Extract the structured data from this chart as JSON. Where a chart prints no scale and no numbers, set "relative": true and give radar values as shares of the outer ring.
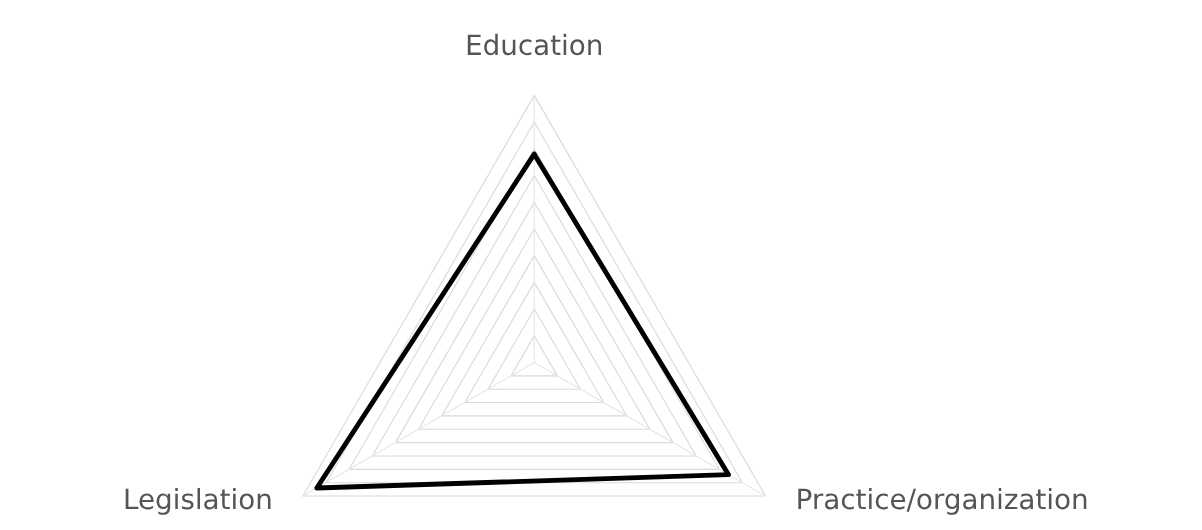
{
  "chart_data": {
    "type": "radar",
    "relative": true,
    "grid": true,
    "categories": [
      "Education",
      "Practice/organization",
      "Legislation"
    ],
    "series": [
      {
        "color": "#000000",
        "values": [
          0.78,
          0.84,
          0.94
        ]
      }
    ]
  }
}
